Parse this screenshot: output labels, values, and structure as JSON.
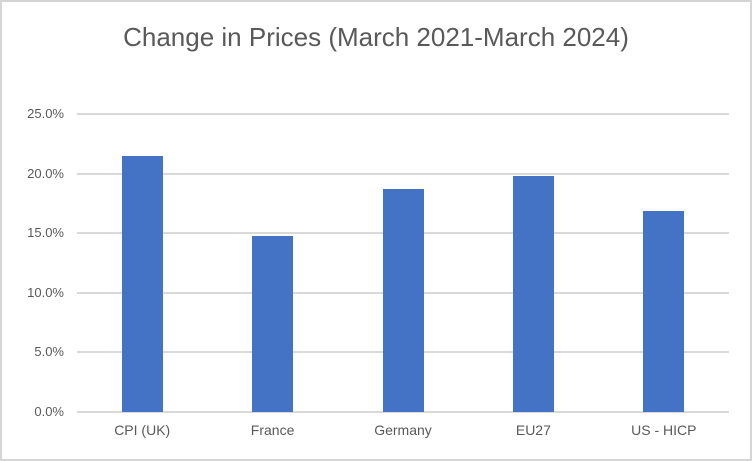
{
  "chart_data": {
    "type": "bar",
    "title": "Change in Prices (March 2021-March 2024)",
    "categories": [
      "CPI (UK)",
      "France",
      "Germany",
      "EU27",
      "US - HICP"
    ],
    "values": [
      21.5,
      14.8,
      18.7,
      19.8,
      16.9
    ],
    "unit": "%",
    "xlabel": "",
    "ylabel": "",
    "ylim": [
      0,
      25
    ],
    "ytick_step": 5,
    "ytick_labels": [
      "0.0%",
      "5.0%",
      "10.0%",
      "15.0%",
      "20.0%",
      "25.0%"
    ],
    "grid": true,
    "legend": false,
    "colors": {
      "bar": "#4472C4",
      "gridline": "#D9D9D9",
      "axis_line": "#D9D9D9",
      "text": "#595959",
      "background": "#FFFFFF",
      "frame_border": "#D5D5D5"
    }
  }
}
